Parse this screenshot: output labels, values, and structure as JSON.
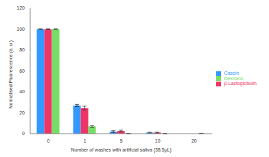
{
  "chart_data": {
    "type": "bar",
    "x_label": "Number of washes with artificial saliva (38.5µL)",
    "y_label": "Normalised Fluorescence (a. u.)",
    "categories": [
      "0",
      "1",
      "5",
      "10",
      "20"
    ],
    "series": [
      {
        "name": "Casein",
        "color": "#3399ff",
        "values": [
          100,
          27,
          2,
          1,
          0
        ],
        "errors": [
          0.3,
          1,
          0.8,
          0.4,
          0
        ]
      },
      {
        "name": "β-Lactoglobulin",
        "color": "#ee3366",
        "values": [
          100,
          24.5,
          2.5,
          1,
          0
        ],
        "errors": [
          0.3,
          1.8,
          0.8,
          0.4,
          0
        ]
      },
      {
        "name": "Dextrans",
        "color": "#77dd66",
        "values": [
          100,
          7,
          0.2,
          0.1,
          0.3
        ],
        "errors": [
          0.3,
          0.8,
          0.1,
          0.1,
          0.1
        ]
      }
    ],
    "ylim": [
      0,
      120
    ],
    "yticks": [
      0,
      20,
      40,
      60,
      80,
      100,
      120
    ],
    "grid": false,
    "legend": "right"
  }
}
